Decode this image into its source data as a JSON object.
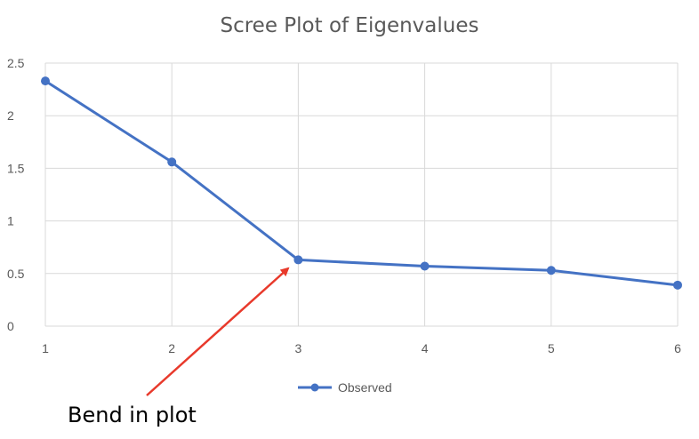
{
  "chart_data": {
    "type": "line",
    "title": "Scree Plot of Eigenvalues",
    "xlabel": "",
    "ylabel": "",
    "x": [
      1,
      2,
      3,
      4,
      5,
      6
    ],
    "series": [
      {
        "name": "Observed",
        "values": [
          2.33,
          1.56,
          0.63,
          0.57,
          0.53,
          0.39
        ]
      }
    ],
    "xlim": [
      1,
      6
    ],
    "ylim": [
      0,
      2.5
    ],
    "yticks": [
      0,
      0.5,
      1,
      1.5,
      2,
      2.5
    ],
    "ytick_labels": [
      "0",
      "0.5",
      "1",
      "1.5",
      "2",
      "2.5"
    ],
    "xticks": [
      1,
      2,
      3,
      4,
      5,
      6
    ],
    "xtick_labels": [
      "1",
      "2",
      "3",
      "4",
      "5",
      "6"
    ],
    "grid": true,
    "legend_position": "bottom",
    "annotation": {
      "text": "Bend in plot",
      "target_x": 3,
      "target_y": 0.63,
      "arrow_color": "#e8392b"
    },
    "colors": {
      "series": "#4472c4",
      "grid": "#d9d9d9",
      "text": "#595959"
    }
  }
}
